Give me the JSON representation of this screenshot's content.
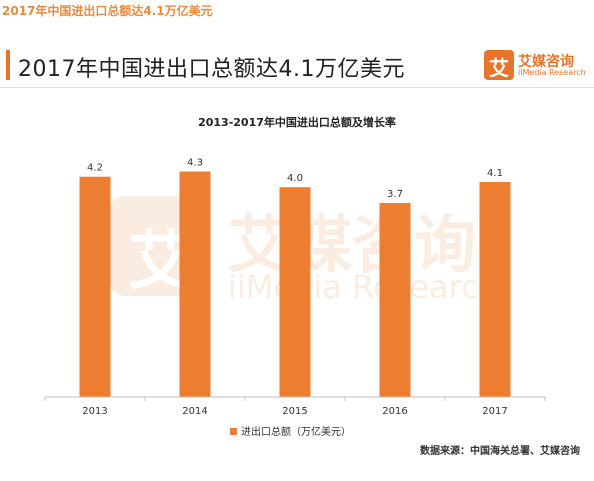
{
  "page": {
    "top_title": "2017年中国进出口总额达4.1万亿美元"
  },
  "header": {
    "title": "2017年中国进出口总额达4.1万亿美元",
    "logo_glyph": "艾",
    "logo_cn": "艾媒咨询",
    "logo_en": "iiMedia Research",
    "accent_color": "#e5752a"
  },
  "watermark": {
    "glyph": "艾",
    "cn": "艾媒咨询",
    "en": "iiMedia Research"
  },
  "source": {
    "text": "数据来源：中国海关总署、艾媒咨询"
  },
  "chart_data": {
    "type": "bar",
    "title": "2013-2017年中国进出口总额及增长率",
    "categories": [
      "2013",
      "2014",
      "2015",
      "2016",
      "2017"
    ],
    "series": [
      {
        "name": "进出口总额（万亿美元）",
        "values": [
          4.2,
          4.3,
          4.0,
          3.7,
          4.1
        ],
        "color": "#ed7d31"
      }
    ],
    "value_labels": [
      "4.2",
      "4.3",
      "4.0",
      "3.7",
      "4.1"
    ],
    "ylim": [
      0,
      4.9
    ],
    "grid": false,
    "legend_position": "bottom-center"
  }
}
